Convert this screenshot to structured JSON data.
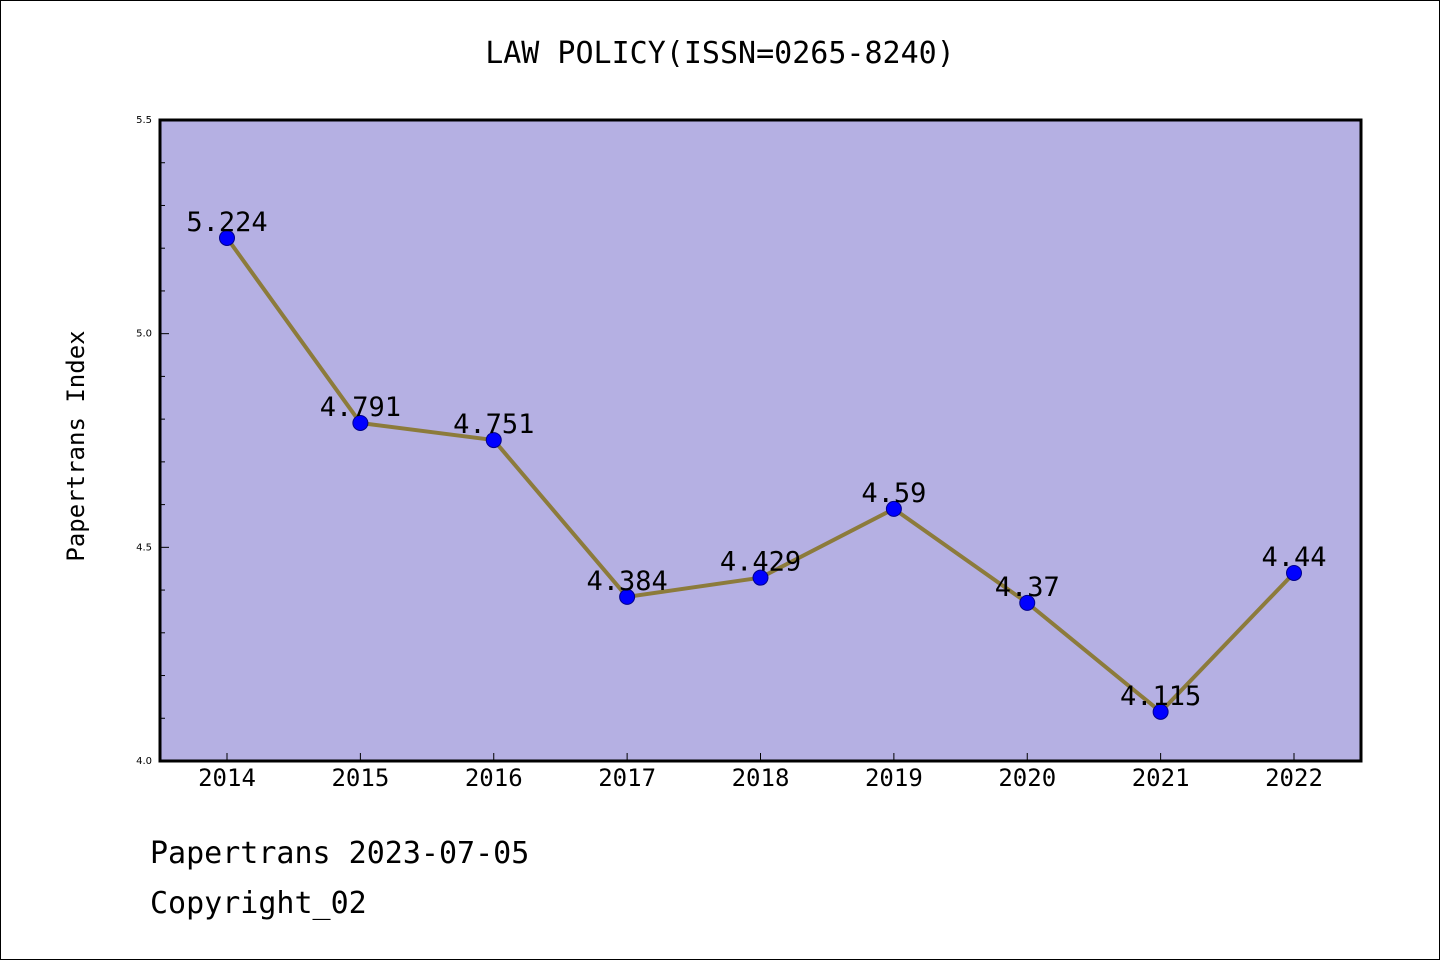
{
  "chart_data": {
    "type": "line",
    "title": "LAW POLICY(ISSN=0265-8240)",
    "xlabel": "",
    "ylabel": "Papertrans Index",
    "x": [
      "2014",
      "2015",
      "2016",
      "2017",
      "2018",
      "2019",
      "2020",
      "2021",
      "2022"
    ],
    "values": [
      5.224,
      4.791,
      4.751,
      4.384,
      4.429,
      4.59,
      4.37,
      4.115,
      4.44
    ],
    "data_labels": [
      "5.224",
      "4.791",
      "4.751",
      "4.384",
      "4.429",
      "4.59",
      "4.37",
      "4.115",
      "4.44"
    ],
    "ylim": [
      4.0,
      5.5
    ],
    "y_ticks": [
      "4.0",
      "4.5",
      "5.0",
      "5.5"
    ],
    "grid": false,
    "colors": {
      "plot_background": "#b5b0e3",
      "line": "#8c7b3b",
      "marker": "#0000ff"
    }
  },
  "footer": {
    "date_line": "Papertrans 2023-07-05",
    "copyright": "Copyright_02"
  }
}
